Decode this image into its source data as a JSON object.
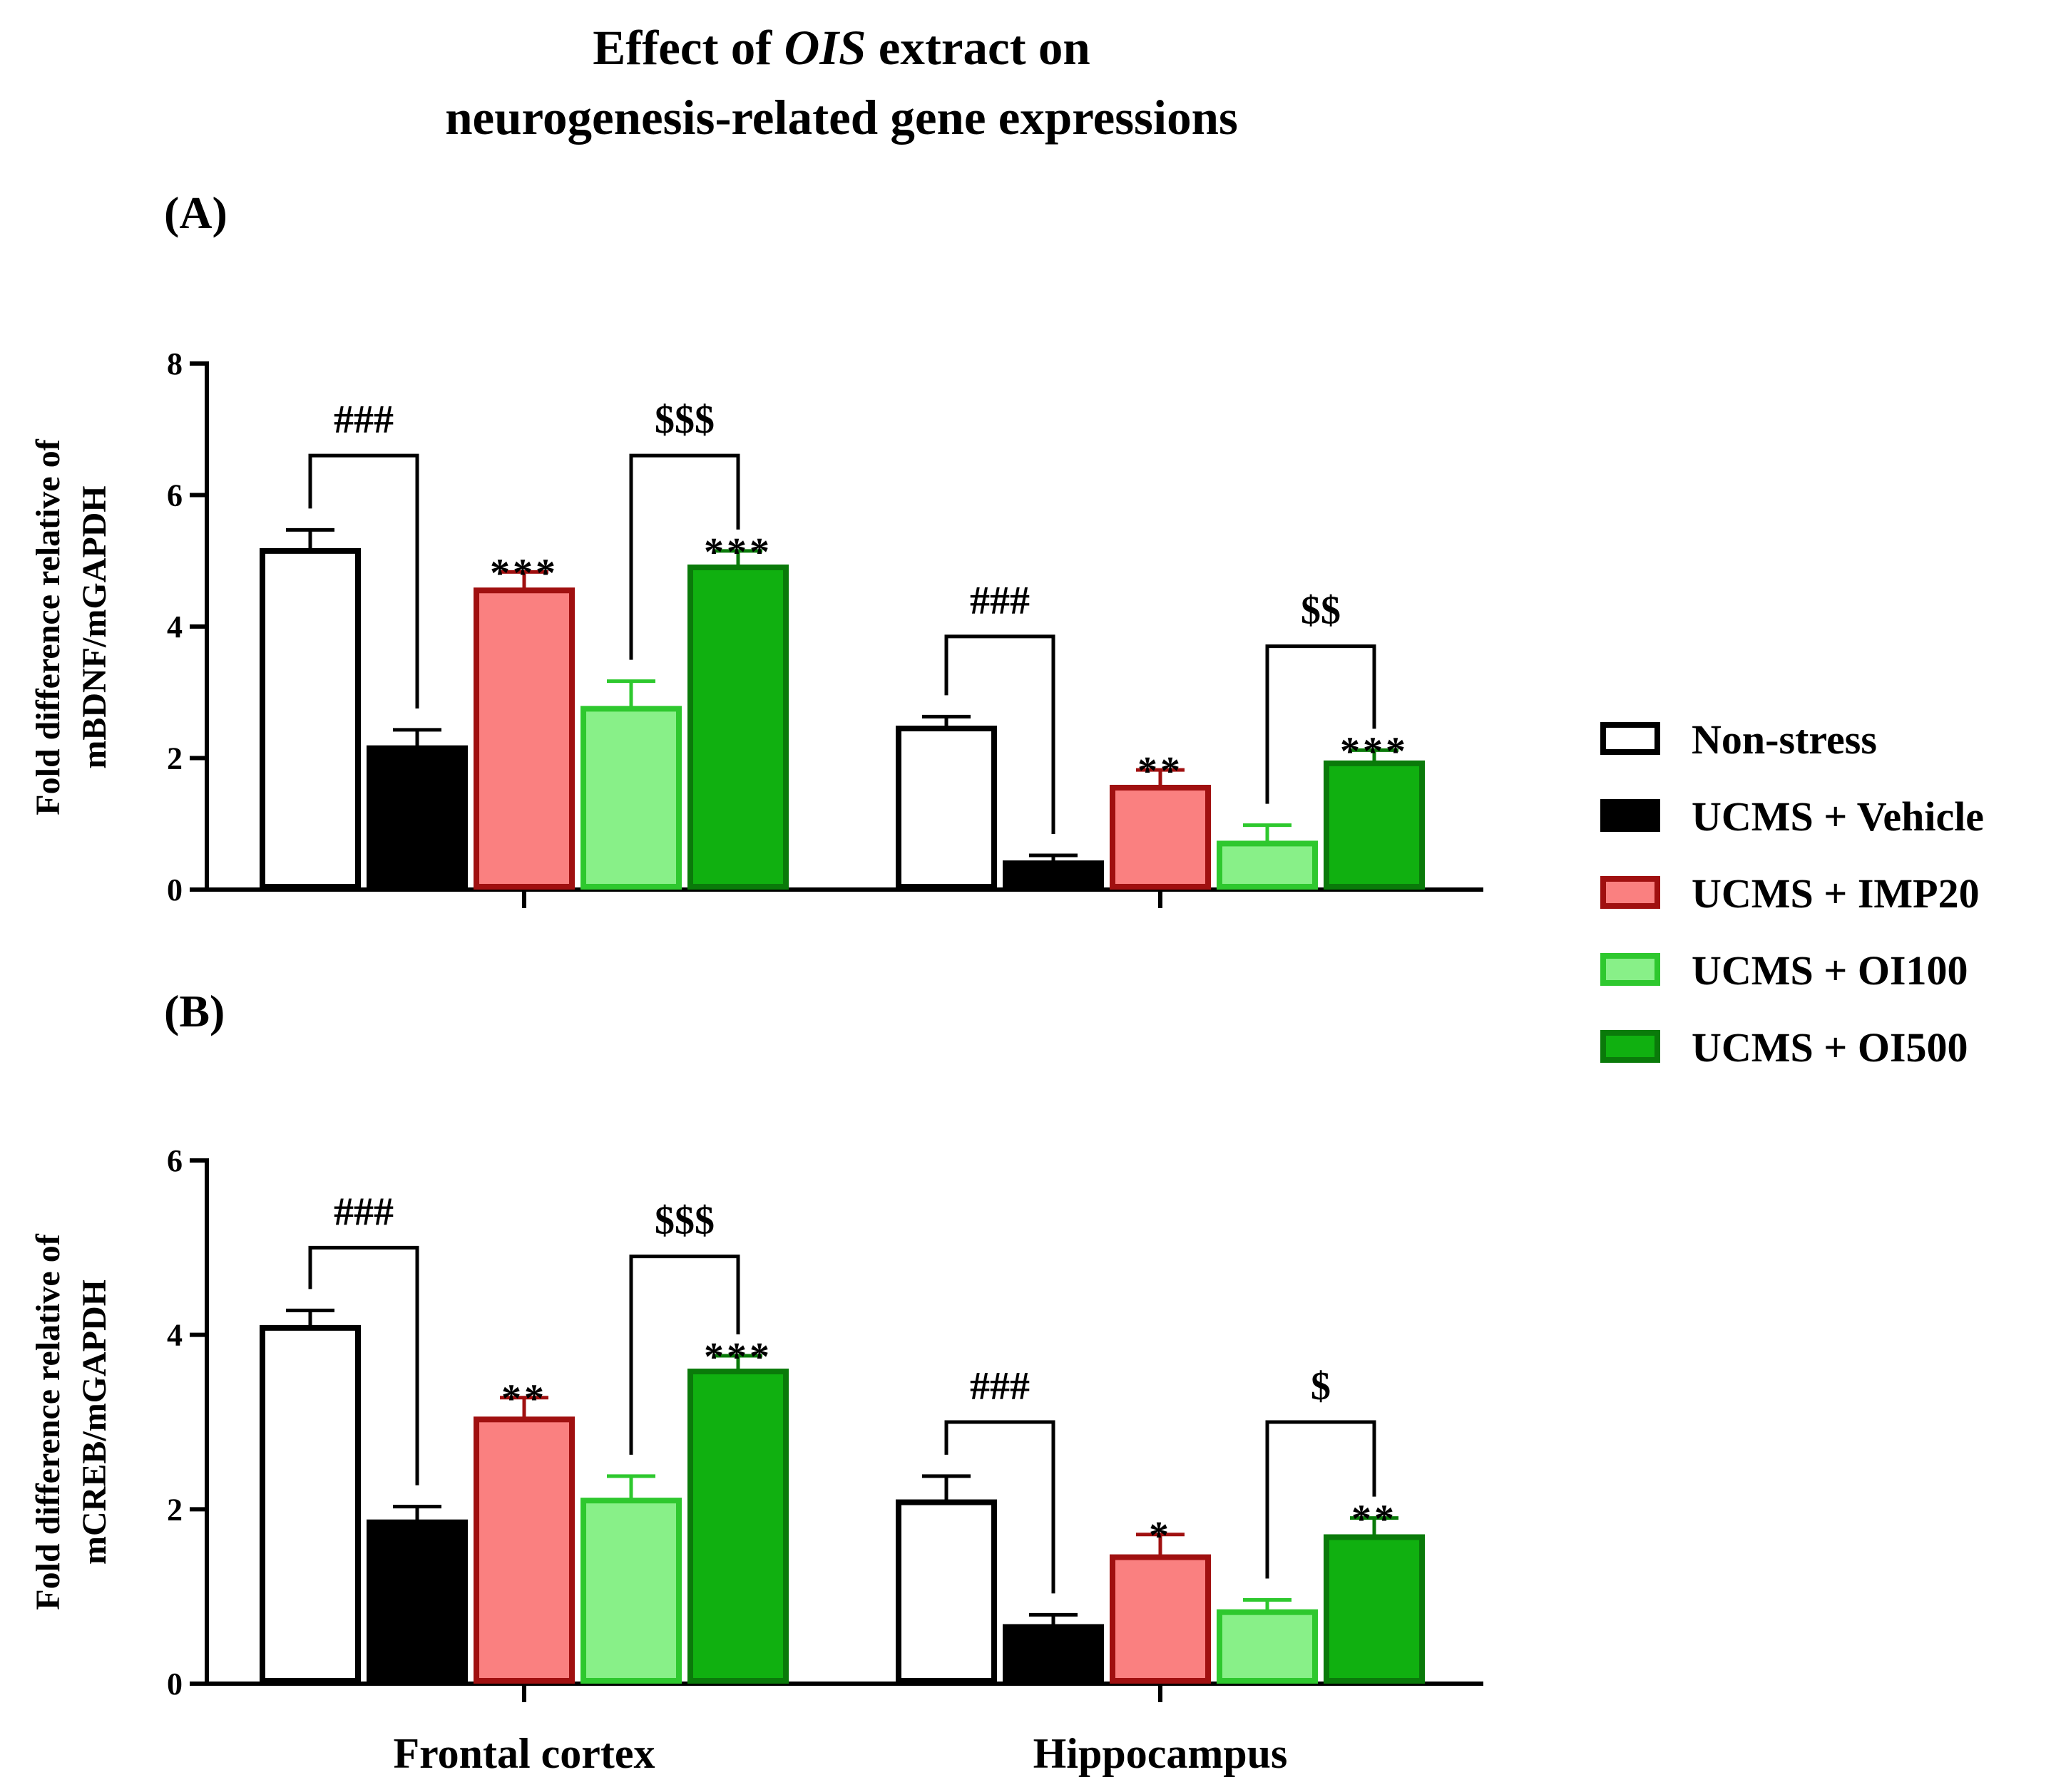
{
  "title": {
    "line1_pre": "Effect of ",
    "line1_italic": "OIS",
    "line1_post": " extract on",
    "line2": "neurogenesis-related gene expressions"
  },
  "legend": [
    {
      "label": "Non-stress",
      "fill": "#ffffff",
      "stroke": "#000000"
    },
    {
      "label": "UCMS + Vehicle",
      "fill": "#000000",
      "stroke": "#000000"
    },
    {
      "label": "UCMS + IMP20",
      "fill": "#fa8080",
      "stroke": "#a01010"
    },
    {
      "label": "UCMS + OI100",
      "fill": "#88f088",
      "stroke": "#2ec82e"
    },
    {
      "label": "UCMS + OI500",
      "fill": "#10b010",
      "stroke": "#0a7a0a"
    }
  ],
  "chart_data": [
    {
      "type": "bar",
      "panel_label": "(A)",
      "ylabel_line1": "Fold difference relative of",
      "ylabel_line2": "mBDNF/mGAPDH",
      "ylim": [
        0,
        8
      ],
      "yticks": [
        "0",
        "2",
        "4",
        "6",
        "8"
      ],
      "categories": [
        "Frontal cortex",
        "Hippocampus"
      ],
      "series": [
        {
          "name": "Non-stress",
          "values": [
            5.15,
            2.45
          ],
          "errors": [
            0.32,
            0.18
          ]
        },
        {
          "name": "UCMS + Vehicle",
          "values": [
            2.15,
            0.4
          ],
          "errors": [
            0.28,
            0.12
          ]
        },
        {
          "name": "UCMS + IMP20",
          "values": [
            4.55,
            1.55
          ],
          "errors": [
            0.28,
            0.27
          ]
        },
        {
          "name": "UCMS + OI100",
          "values": [
            2.75,
            0.7
          ],
          "errors": [
            0.42,
            0.28
          ]
        },
        {
          "name": "UCMS + OI500",
          "values": [
            4.9,
            1.92
          ],
          "errors": [
            0.25,
            0.2
          ]
        }
      ],
      "star_labels": [
        [
          "",
          "",
          "***",
          "",
          "***"
        ],
        [
          "",
          "",
          "**",
          "",
          "***"
        ]
      ],
      "brackets": [
        {
          "category": 0,
          "from": 0,
          "to": 1,
          "label": "###",
          "level": 6.6
        },
        {
          "category": 0,
          "from": 3,
          "to": 4,
          "label": "$$$",
          "level": 6.6
        },
        {
          "category": 1,
          "from": 0,
          "to": 1,
          "label": "###",
          "level": 3.85
        },
        {
          "category": 1,
          "from": 3,
          "to": 4,
          "label": "$$",
          "level": 3.7
        }
      ]
    },
    {
      "type": "bar",
      "panel_label": "(B)",
      "ylabel_line1": "Fold difference relative of",
      "ylabel_line2": "mCREB/mGAPDH",
      "ylim": [
        0,
        6
      ],
      "yticks": [
        "0",
        "2",
        "4",
        "6"
      ],
      "categories": [
        "Frontal cortex",
        "Hippocampus"
      ],
      "series": [
        {
          "name": "Non-stress",
          "values": [
            4.08,
            2.08
          ],
          "errors": [
            0.2,
            0.3
          ]
        },
        {
          "name": "UCMS + Vehicle",
          "values": [
            1.85,
            0.65
          ],
          "errors": [
            0.18,
            0.14
          ]
        },
        {
          "name": "UCMS + IMP20",
          "values": [
            3.03,
            1.45
          ],
          "errors": [
            0.25,
            0.26
          ]
        },
        {
          "name": "UCMS + OI100",
          "values": [
            2.1,
            0.82
          ],
          "errors": [
            0.28,
            0.14
          ]
        },
        {
          "name": "UCMS + OI500",
          "values": [
            3.58,
            1.68
          ],
          "errors": [
            0.18,
            0.22
          ]
        }
      ],
      "star_labels": [
        [
          "",
          "",
          "**",
          "",
          "***"
        ],
        [
          "",
          "",
          "*",
          "",
          "**"
        ]
      ],
      "brackets": [
        {
          "category": 0,
          "from": 0,
          "to": 1,
          "label": "###",
          "level": 5.0
        },
        {
          "category": 0,
          "from": 3,
          "to": 4,
          "label": "$$$",
          "level": 4.9
        },
        {
          "category": 1,
          "from": 0,
          "to": 1,
          "label": "###",
          "level": 3.0
        },
        {
          "category": 1,
          "from": 3,
          "to": 4,
          "label": "$",
          "level": 3.0
        }
      ]
    }
  ]
}
